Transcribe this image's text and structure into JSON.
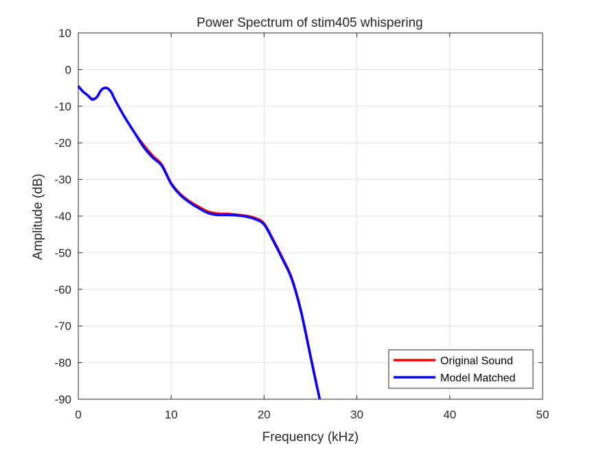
{
  "chart_data": {
    "type": "line",
    "title": "Power Spectrum of stim405 whispering",
    "xlabel": "Frequency (kHz)",
    "ylabel": "Amplitude (dB)",
    "xlim": [
      0,
      50
    ],
    "ylim": [
      -90,
      10
    ],
    "xticks": [
      0,
      10,
      20,
      30,
      40,
      50
    ],
    "yticks": [
      10,
      0,
      -10,
      -20,
      -30,
      -40,
      -50,
      -60,
      -70,
      -80,
      -90
    ],
    "grid": true,
    "legend_position": "bottom-right",
    "series": [
      {
        "name": "Original Sound",
        "color": "#ff0000",
        "x": [
          0,
          0.5,
          1,
          1.5,
          2,
          2.5,
          3,
          3.5,
          4,
          5,
          6,
          7,
          8,
          9,
          10,
          11,
          12,
          13,
          14,
          15,
          16,
          17,
          18,
          19,
          20,
          21,
          22,
          23,
          24,
          25,
          25.5,
          26
        ],
        "y": [
          -4.5,
          -6,
          -7,
          -8,
          -7.5,
          -5.5,
          -5,
          -6,
          -8.5,
          -13,
          -17,
          -20.5,
          -23.5,
          -26,
          -31,
          -34,
          -36,
          -37.5,
          -38.8,
          -39.3,
          -39.4,
          -39.6,
          -39.9,
          -40.5,
          -42,
          -46.5,
          -51.5,
          -57,
          -66,
          -78,
          -84,
          -90
        ]
      },
      {
        "name": "Model Matched",
        "color": "#0000ff",
        "x": [
          0,
          0.5,
          1,
          1.5,
          2,
          2.5,
          3,
          3.5,
          4,
          5,
          6,
          7,
          8,
          9,
          10,
          11,
          12,
          13,
          14,
          15,
          16,
          17,
          18,
          19,
          20,
          21,
          22,
          23,
          24,
          25,
          25.5,
          26
        ],
        "y": [
          -4.5,
          -6,
          -7,
          -8.2,
          -7.5,
          -5.5,
          -5,
          -6,
          -8.5,
          -13,
          -17,
          -21,
          -24,
          -26.3,
          -31.2,
          -34.3,
          -36.3,
          -37.9,
          -39.2,
          -39.7,
          -39.7,
          -39.8,
          -40.1,
          -40.8,
          -42.3,
          -46.8,
          -51.8,
          -57.3,
          -66.3,
          -78.3,
          -84.3,
          -90
        ]
      }
    ]
  }
}
